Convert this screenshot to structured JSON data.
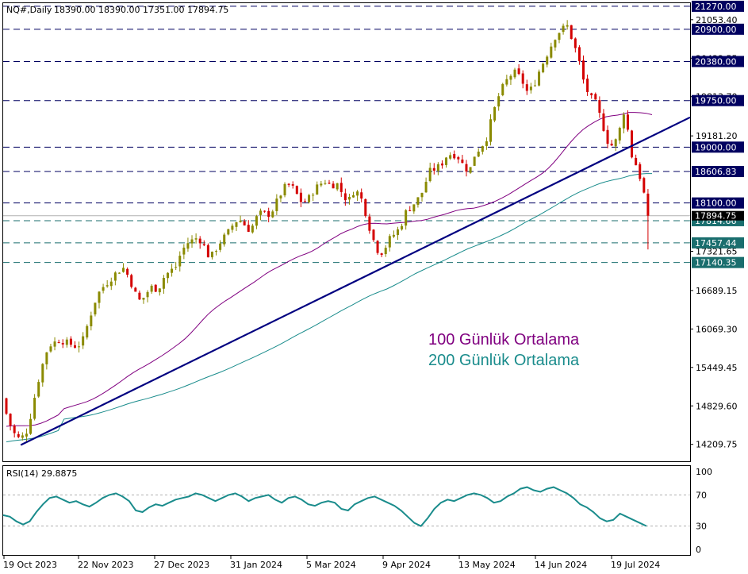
{
  "header": {
    "symbol": "NQ#,Daily",
    "ohlc": "18390.00 18390.00 17351.00 17894.75"
  },
  "colors": {
    "bull": "#8a8a00",
    "bear": "#d40000",
    "ma100": "#800080",
    "ma200": "#1a8c8c",
    "trend": "#000080",
    "level_box": "#000060",
    "level_line": "#000060",
    "rsi": "#1a8c8c"
  },
  "chart_data": [
    {
      "type": "candlestick",
      "title": "",
      "ylim": [
        13950,
        21320
      ],
      "price_ticks": [
        {
          "value": 21053.4,
          "label": "21053.40"
        },
        {
          "value": 20433.55,
          "label": "20433.55"
        },
        {
          "value": 19813.7,
          "label": "19813.70"
        },
        {
          "value": 19181.2,
          "label": "19181.20"
        },
        {
          "value": 17321.65,
          "label": "17321.65"
        },
        {
          "value": 16689.15,
          "label": "16689.15"
        },
        {
          "value": 16069.3,
          "label": "16069.30"
        },
        {
          "value": 15449.45,
          "label": "15449.45"
        },
        {
          "value": 14829.6,
          "label": "14829.60"
        },
        {
          "value": 14209.75,
          "label": "14209.75"
        }
      ],
      "levels": [
        {
          "value": 21270.0,
          "label": "21270.00",
          "color": "#000060"
        },
        {
          "value": 20900.0,
          "label": "20900.00",
          "color": "#000060"
        },
        {
          "value": 20380.0,
          "label": "20380.00",
          "color": "#000060"
        },
        {
          "value": 19750.0,
          "label": "19750.00",
          "color": "#000060"
        },
        {
          "value": 19000.0,
          "label": "19000.00",
          "color": "#000060"
        },
        {
          "value": 18606.83,
          "label": "18606.83",
          "color": "#000060"
        },
        {
          "value": 18100.0,
          "label": "18100.00",
          "color": "#000060"
        },
        {
          "value": 17814.66,
          "label": "17814.66",
          "color": "#1a6e6e"
        },
        {
          "value": 17457.44,
          "label": "17457.44",
          "color": "#1a6e6e"
        },
        {
          "value": 17140.35,
          "label": "17140.35",
          "color": "#1a6e6e"
        }
      ],
      "current_price": {
        "value": 17894.75,
        "label": "17894.75"
      },
      "x_labels": [
        "19 Oct 2023",
        "22 Nov 2023",
        "27 Dec 2023",
        "31 Jan 2024",
        "5 Mar 2024",
        "9 Apr 2024",
        "13 May 2024",
        "14 Jun 2024",
        "19 Jul 2024"
      ],
      "annotations": [
        {
          "text": "100 Günlük Ortalama",
          "color": "#800080"
        },
        {
          "text": "200 Günlük Ortalama",
          "color": "#1a8c8c"
        }
      ],
      "trendline": {
        "from": {
          "date": "2023-10-26",
          "value": 14200
        },
        "to": {
          "date": "2024-08-06",
          "value": 18750
        }
      },
      "price_path": [
        [
          0,
          14950
        ],
        [
          2,
          14600
        ],
        [
          5,
          14300
        ],
        [
          8,
          14350
        ],
        [
          10,
          14700
        ],
        [
          12,
          15150
        ],
        [
          14,
          15500
        ],
        [
          16,
          15800
        ],
        [
          18,
          15850
        ],
        [
          20,
          15900
        ],
        [
          22,
          15850
        ],
        [
          24,
          15820
        ],
        [
          26,
          15780
        ],
        [
          28,
          15900
        ],
        [
          30,
          16200
        ],
        [
          32,
          16500
        ],
        [
          34,
          16700
        ],
        [
          36,
          16800
        ],
        [
          38,
          16900
        ],
        [
          40,
          17000
        ],
        [
          42,
          17050
        ],
        [
          44,
          16900
        ],
        [
          46,
          16650
        ],
        [
          48,
          16500
        ],
        [
          50,
          16650
        ],
        [
          52,
          16750
        ],
        [
          54,
          16700
        ],
        [
          56,
          16900
        ],
        [
          58,
          17000
        ],
        [
          60,
          17050
        ],
        [
          62,
          17300
        ],
        [
          64,
          17450
        ],
        [
          66,
          17500
        ],
        [
          68,
          17550
        ],
        [
          70,
          17400
        ],
        [
          72,
          17200
        ],
        [
          74,
          17350
        ],
        [
          76,
          17500
        ],
        [
          78,
          17600
        ],
        [
          80,
          17750
        ],
        [
          82,
          17850
        ],
        [
          84,
          17750
        ],
        [
          86,
          17650
        ],
        [
          88,
          17850
        ],
        [
          90,
          17950
        ],
        [
          92,
          17900
        ],
        [
          94,
          18000
        ],
        [
          96,
          18200
        ],
        [
          98,
          18350
        ],
        [
          100,
          18400
        ],
        [
          102,
          18250
        ],
        [
          104,
          18100
        ],
        [
          106,
          18150
        ],
        [
          108,
          18300
        ],
        [
          110,
          18400
        ],
        [
          112,
          18450
        ],
        [
          114,
          18380
        ],
        [
          116,
          18420
        ],
        [
          118,
          18250
        ],
        [
          120,
          18120
        ],
        [
          122,
          18300
        ],
        [
          124,
          18250
        ],
        [
          126,
          17950
        ],
        [
          128,
          17600
        ],
        [
          130,
          17350
        ],
        [
          132,
          17300
        ],
        [
          134,
          17500
        ],
        [
          136,
          17600
        ],
        [
          138,
          17700
        ],
        [
          140,
          17950
        ],
        [
          142,
          18050
        ],
        [
          144,
          18150
        ],
        [
          146,
          18300
        ],
        [
          148,
          18600
        ],
        [
          150,
          18650
        ],
        [
          152,
          18700
        ],
        [
          154,
          18850
        ],
        [
          156,
          18900
        ],
        [
          158,
          18850
        ],
        [
          160,
          18700
        ],
        [
          162,
          18600
        ],
        [
          164,
          18900
        ],
        [
          166,
          19000
        ],
        [
          168,
          19150
        ],
        [
          170,
          19500
        ],
        [
          172,
          19800
        ],
        [
          174,
          20000
        ],
        [
          176,
          20150
        ],
        [
          178,
          20200
        ],
        [
          180,
          20100
        ],
        [
          182,
          19900
        ],
        [
          184,
          19950
        ],
        [
          186,
          20200
        ],
        [
          188,
          20400
        ],
        [
          190,
          20600
        ],
        [
          192,
          20800
        ],
        [
          194,
          20900
        ],
        [
          196,
          20950
        ],
        [
          198,
          20700
        ],
        [
          200,
          20400
        ],
        [
          202,
          20000
        ],
        [
          204,
          19800
        ],
        [
          206,
          19700
        ],
        [
          208,
          19400
        ],
        [
          210,
          19100
        ],
        [
          212,
          19000
        ],
        [
          214,
          19250
        ],
        [
          216,
          19650
        ],
        [
          218,
          18900
        ],
        [
          220,
          18700
        ],
        [
          222,
          18400
        ],
        [
          224,
          17894.75
        ]
      ],
      "x_range_days": 224,
      "rsi": {
        "label": "RSI(14) 29.8875",
        "ylim": [
          0,
          100
        ],
        "ticks": [
          100,
          70,
          30,
          0
        ],
        "levels": [
          70,
          30
        ],
        "values": [
          44,
          42,
          36,
          32,
          36,
          48,
          58,
          66,
          68,
          64,
          60,
          62,
          58,
          55,
          60,
          66,
          70,
          72,
          68,
          62,
          50,
          48,
          54,
          58,
          56,
          60,
          64,
          66,
          68,
          72,
          70,
          66,
          62,
          66,
          70,
          72,
          68,
          62,
          66,
          68,
          70,
          64,
          60,
          66,
          68,
          64,
          58,
          56,
          60,
          62,
          60,
          52,
          50,
          58,
          62,
          66,
          68,
          64,
          60,
          56,
          50,
          42,
          34,
          30,
          40,
          52,
          60,
          64,
          62,
          66,
          70,
          72,
          70,
          66,
          60,
          62,
          68,
          72,
          78,
          80,
          76,
          74,
          78,
          80,
          76,
          72,
          66,
          58,
          54,
          48,
          40,
          36,
          38,
          46,
          42,
          38,
          34,
          30
        ]
      }
    }
  ]
}
